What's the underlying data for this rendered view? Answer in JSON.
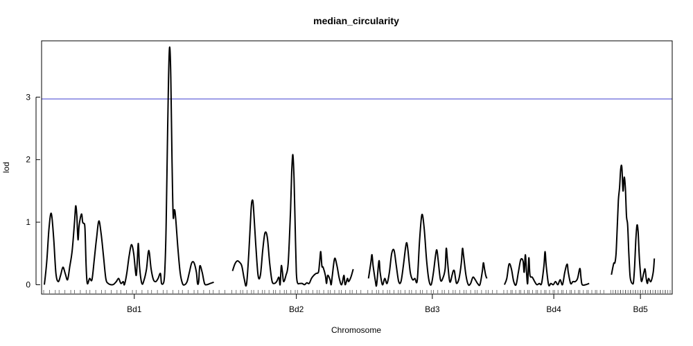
{
  "chart_data": {
    "type": "line",
    "title": "median_circularity",
    "xlabel": "Chromosome",
    "ylabel": "lod",
    "ylim": [
      -0.15,
      3.9
    ],
    "yticks": [
      0,
      1,
      2,
      3
    ],
    "threshold": {
      "value": 2.97,
      "color": "#3c3ccf"
    },
    "line_color": "#000000",
    "chromosomes": [
      {
        "name": "Bd1",
        "length": 155,
        "points": [
          [
            0,
            0.0
          ],
          [
            2,
            0.35
          ],
          [
            4,
            0.9
          ],
          [
            6,
            1.14
          ],
          [
            8,
            0.75
          ],
          [
            10,
            0.18
          ],
          [
            12,
            0.05
          ],
          [
            14,
            0.15
          ],
          [
            16,
            0.28
          ],
          [
            18,
            0.18
          ],
          [
            20,
            0.08
          ],
          [
            22,
            0.3
          ],
          [
            24,
            0.55
          ],
          [
            26,
            1.0
          ],
          [
            27,
            1.26
          ],
          [
            28,
            1.1
          ],
          [
            29,
            0.72
          ],
          [
            30,
            0.95
          ],
          [
            32,
            1.13
          ],
          [
            33,
            1.0
          ],
          [
            34,
            0.98
          ],
          [
            35,
            0.9
          ],
          [
            36,
            0.3
          ],
          [
            37,
            0.02
          ],
          [
            39,
            0.1
          ],
          [
            41,
            0.08
          ],
          [
            43,
            0.4
          ],
          [
            45,
            0.75
          ],
          [
            47,
            1.02
          ],
          [
            49,
            0.8
          ],
          [
            51,
            0.45
          ],
          [
            53,
            0.1
          ],
          [
            55,
            0.02
          ],
          [
            59,
            0.0
          ],
          [
            62,
            0.05
          ],
          [
            64,
            0.1
          ],
          [
            66,
            0.02
          ],
          [
            68,
            0.05
          ],
          [
            69,
            0.0
          ],
          [
            71,
            0.18
          ],
          [
            73,
            0.45
          ],
          [
            75,
            0.64
          ],
          [
            77,
            0.5
          ],
          [
            79,
            0.15
          ],
          [
            80,
            0.35
          ],
          [
            81,
            0.66
          ],
          [
            82,
            0.3
          ],
          [
            84,
            0.02
          ],
          [
            86,
            0.08
          ],
          [
            88,
            0.25
          ],
          [
            90,
            0.55
          ],
          [
            92,
            0.25
          ],
          [
            94,
            0.08
          ],
          [
            96,
            0.05
          ],
          [
            98,
            0.1
          ],
          [
            100,
            0.18
          ],
          [
            101,
            0.02
          ],
          [
            103,
            0.05
          ],
          [
            104,
            0.3
          ],
          [
            105,
            1.0
          ],
          [
            106,
            2.2
          ],
          [
            107,
            3.3
          ],
          [
            108,
            3.8
          ],
          [
            109,
            3.3
          ],
          [
            110,
            2.0
          ],
          [
            111,
            1.1
          ],
          [
            112,
            1.2
          ],
          [
            113,
            1.1
          ],
          [
            115,
            0.6
          ],
          [
            117,
            0.2
          ],
          [
            119,
            0.02
          ],
          [
            121,
            0.0
          ],
          [
            123,
            0.05
          ],
          [
            125,
            0.2
          ],
          [
            127,
            0.35
          ],
          [
            129,
            0.35
          ],
          [
            131,
            0.2
          ],
          [
            132,
            0.02
          ],
          [
            133,
            0.05
          ],
          [
            134,
            0.3
          ],
          [
            136,
            0.2
          ],
          [
            138,
            0.02
          ],
          [
            140,
            0.0
          ],
          [
            143,
            0.02
          ],
          [
            146,
            0.04
          ]
        ]
      },
      {
        "name": "Bd2",
        "length": 110,
        "points": [
          [
            0,
            0.22
          ],
          [
            2,
            0.33
          ],
          [
            4,
            0.38
          ],
          [
            6,
            0.36
          ],
          [
            8,
            0.3
          ],
          [
            10,
            0.1
          ],
          [
            12,
            0.0
          ],
          [
            14,
            0.5
          ],
          [
            16,
            1.2
          ],
          [
            17,
            1.35
          ],
          [
            18,
            1.25
          ],
          [
            20,
            0.65
          ],
          [
            22,
            0.15
          ],
          [
            24,
            0.15
          ],
          [
            26,
            0.55
          ],
          [
            28,
            0.83
          ],
          [
            30,
            0.75
          ],
          [
            32,
            0.35
          ],
          [
            34,
            0.06
          ],
          [
            36,
            0.02
          ],
          [
            38,
            0.05
          ],
          [
            40,
            0.12
          ],
          [
            41,
            0.0
          ],
          [
            42,
            0.3
          ],
          [
            43,
            0.2
          ],
          [
            44,
            0.05
          ],
          [
            46,
            0.15
          ],
          [
            48,
            0.35
          ],
          [
            50,
            1.2
          ],
          [
            51,
            1.8
          ],
          [
            52,
            2.08
          ],
          [
            53,
            1.7
          ],
          [
            54,
            0.9
          ],
          [
            55,
            0.2
          ],
          [
            56,
            0.03
          ],
          [
            58,
            0.02
          ],
          [
            60,
            0.02
          ],
          [
            62,
            0.0
          ],
          [
            64,
            0.03
          ],
          [
            66,
            0.02
          ],
          [
            68,
            0.1
          ],
          [
            70,
            0.15
          ],
          [
            72,
            0.18
          ],
          [
            74,
            0.2
          ],
          [
            75,
            0.35
          ],
          [
            76,
            0.53
          ],
          [
            77,
            0.3
          ],
          [
            78,
            0.28
          ],
          [
            80,
            0.15
          ],
          [
            81,
            0.02
          ],
          [
            82,
            0.15
          ],
          [
            84,
            0.08
          ],
          [
            85,
            0.0
          ],
          [
            86,
            0.15
          ],
          [
            88,
            0.42
          ],
          [
            90,
            0.3
          ],
          [
            92,
            0.1
          ],
          [
            94,
            0.0
          ],
          [
            96,
            0.15
          ],
          [
            97,
            0.0
          ],
          [
            99,
            0.1
          ],
          [
            100,
            0.05
          ],
          [
            102,
            0.12
          ],
          [
            104,
            0.25
          ]
        ]
      },
      {
        "name": "Bd3",
        "length": 110,
        "points": [
          [
            0,
            0.1
          ],
          [
            2,
            0.35
          ],
          [
            3,
            0.48
          ],
          [
            4,
            0.3
          ],
          [
            6,
            0.05
          ],
          [
            7,
            0.0
          ],
          [
            9,
            0.38
          ],
          [
            10,
            0.2
          ],
          [
            12,
            0.0
          ],
          [
            14,
            0.1
          ],
          [
            16,
            0.02
          ],
          [
            18,
            0.2
          ],
          [
            20,
            0.5
          ],
          [
            22,
            0.55
          ],
          [
            24,
            0.3
          ],
          [
            26,
            0.05
          ],
          [
            28,
            0.05
          ],
          [
            30,
            0.3
          ],
          [
            32,
            0.6
          ],
          [
            33,
            0.67
          ],
          [
            34,
            0.55
          ],
          [
            36,
            0.2
          ],
          [
            38,
            0.08
          ],
          [
            40,
            0.1
          ],
          [
            42,
            0.07
          ],
          [
            44,
            0.7
          ],
          [
            46,
            1.12
          ],
          [
            48,
            0.9
          ],
          [
            50,
            0.4
          ],
          [
            52,
            0.08
          ],
          [
            54,
            0.0
          ],
          [
            56,
            0.2
          ],
          [
            58,
            0.5
          ],
          [
            59,
            0.55
          ],
          [
            60,
            0.4
          ],
          [
            62,
            0.08
          ],
          [
            64,
            0.1
          ],
          [
            66,
            0.25
          ],
          [
            67,
            0.58
          ],
          [
            68,
            0.4
          ],
          [
            70,
            0.05
          ],
          [
            72,
            0.15
          ],
          [
            73,
            0.22
          ],
          [
            74,
            0.22
          ],
          [
            75,
            0.1
          ],
          [
            76,
            0.02
          ],
          [
            78,
            0.1
          ],
          [
            80,
            0.35
          ],
          [
            81,
            0.58
          ],
          [
            82,
            0.45
          ],
          [
            84,
            0.15
          ],
          [
            86,
            0.0
          ],
          [
            88,
            0.02
          ],
          [
            90,
            0.12
          ],
          [
            92,
            0.08
          ],
          [
            94,
            0.02
          ],
          [
            96,
            0.0
          ],
          [
            98,
            0.2
          ],
          [
            99,
            0.35
          ],
          [
            100,
            0.25
          ],
          [
            101,
            0.15
          ],
          [
            102,
            0.1
          ]
        ]
      },
      {
        "name": "Bd4",
        "length": 85,
        "points": [
          [
            0,
            0.0
          ],
          [
            2,
            0.1
          ],
          [
            4,
            0.33
          ],
          [
            6,
            0.25
          ],
          [
            8,
            0.05
          ],
          [
            10,
            0.0
          ],
          [
            12,
            0.2
          ],
          [
            14,
            0.4
          ],
          [
            16,
            0.38
          ],
          [
            17,
            0.2
          ],
          [
            18,
            0.48
          ],
          [
            19,
            0.2
          ],
          [
            20,
            0.02
          ],
          [
            21,
            0.43
          ],
          [
            22,
            0.15
          ],
          [
            24,
            0.12
          ],
          [
            26,
            0.05
          ],
          [
            28,
            0.0
          ],
          [
            30,
            0.02
          ],
          [
            32,
            0.02
          ],
          [
            34,
            0.3
          ],
          [
            35,
            0.53
          ],
          [
            36,
            0.3
          ],
          [
            38,
            0.0
          ],
          [
            40,
            0.02
          ],
          [
            42,
            0.0
          ],
          [
            44,
            0.05
          ],
          [
            46,
            0.0
          ],
          [
            48,
            0.08
          ],
          [
            50,
            0.0
          ],
          [
            52,
            0.2
          ],
          [
            54,
            0.33
          ],
          [
            55,
            0.2
          ],
          [
            57,
            0.02
          ],
          [
            59,
            0.05
          ],
          [
            61,
            0.05
          ],
          [
            63,
            0.1
          ],
          [
            65,
            0.26
          ],
          [
            66,
            0.1
          ],
          [
            67,
            0.0
          ],
          [
            70,
            0.0
          ],
          [
            73,
            0.02
          ]
        ]
      },
      {
        "name": "Bd5",
        "length": 50,
        "points": [
          [
            0,
            0.16
          ],
          [
            2,
            0.34
          ],
          [
            3,
            0.35
          ],
          [
            4,
            0.5
          ],
          [
            5,
            0.9
          ],
          [
            6,
            1.35
          ],
          [
            7,
            1.55
          ],
          [
            8,
            1.85
          ],
          [
            9,
            1.88
          ],
          [
            10,
            1.5
          ],
          [
            11,
            1.72
          ],
          [
            12,
            1.55
          ],
          [
            13,
            1.1
          ],
          [
            14,
            0.95
          ],
          [
            15,
            0.5
          ],
          [
            16,
            0.15
          ],
          [
            17,
            0.05
          ],
          [
            18,
            0.02
          ],
          [
            19,
            0.04
          ],
          [
            20,
            0.3
          ],
          [
            21,
            0.7
          ],
          [
            22,
            0.95
          ],
          [
            23,
            0.85
          ],
          [
            24,
            0.45
          ],
          [
            25,
            0.2
          ],
          [
            26,
            0.05
          ],
          [
            28,
            0.2
          ],
          [
            29,
            0.25
          ],
          [
            30,
            0.1
          ],
          [
            31,
            0.02
          ],
          [
            32,
            0.1
          ],
          [
            34,
            0.05
          ],
          [
            36,
            0.2
          ],
          [
            37,
            0.42
          ]
        ]
      }
    ]
  }
}
